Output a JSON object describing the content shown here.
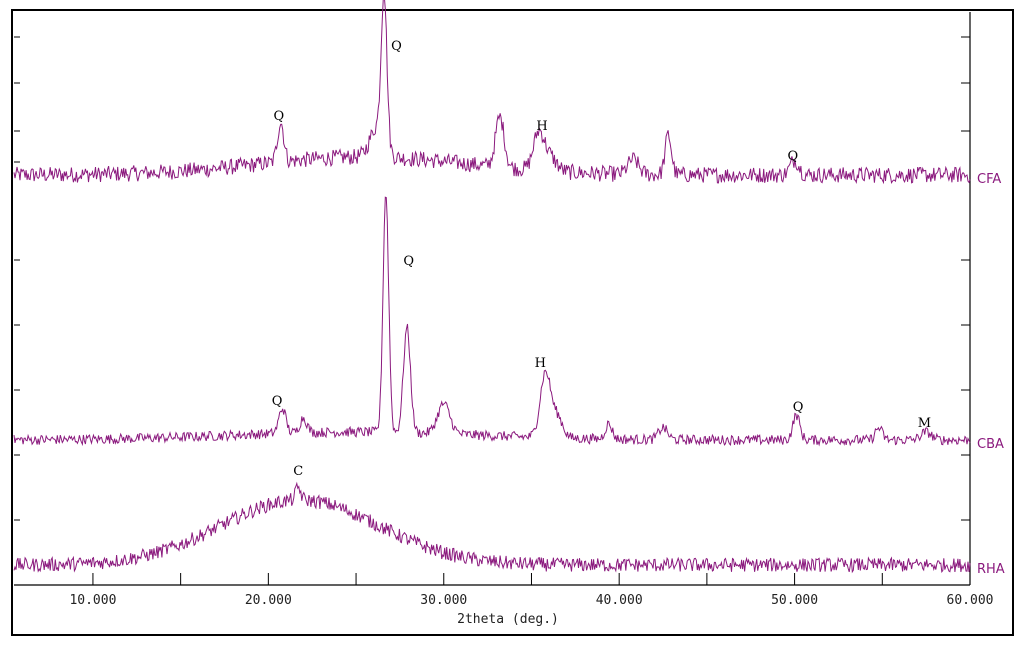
{
  "chart_data": {
    "type": "line",
    "xlabel": "2theta (deg.)",
    "x_ticks": [
      "10.000",
      "20.000",
      "30.000",
      "40.000",
      "50.000",
      "60.000"
    ],
    "xlim": [
      5.5,
      60
    ],
    "line_color": "#8B1A7E",
    "series": [
      {
        "name": "CFA",
        "baseline": 175,
        "peaks": [
          {
            "x": 20.7,
            "h": 40,
            "w": 0.18
          },
          {
            "x": 26.6,
            "h": 150,
            "w": 0.16
          },
          {
            "x": 26.2,
            "h": 30,
            "w": 0.4
          },
          {
            "x": 33.2,
            "h": 50,
            "w": 0.25
          },
          {
            "x": 35.4,
            "h": 35,
            "w": 0.3
          },
          {
            "x": 36.0,
            "h": 15,
            "w": 0.4
          },
          {
            "x": 40.8,
            "h": 15,
            "w": 0.3
          },
          {
            "x": 42.8,
            "h": 40,
            "w": 0.18
          },
          {
            "x": 50.0,
            "h": 15,
            "w": 0.25
          }
        ],
        "hump": {
          "center": 25.5,
          "height": 18,
          "sigma": 6
        },
        "noise": 8
      },
      {
        "name": "CBA",
        "baseline": 440,
        "peaks": [
          {
            "x": 20.8,
            "h": 25,
            "w": 0.2
          },
          {
            "x": 22.0,
            "h": 15,
            "w": 0.2
          },
          {
            "x": 26.7,
            "h": 240,
            "w": 0.16
          },
          {
            "x": 27.9,
            "h": 105,
            "w": 0.2
          },
          {
            "x": 30.0,
            "h": 30,
            "w": 0.35
          },
          {
            "x": 35.8,
            "h": 65,
            "w": 0.3
          },
          {
            "x": 36.5,
            "h": 20,
            "w": 0.3
          },
          {
            "x": 39.4,
            "h": 15,
            "w": 0.2
          },
          {
            "x": 42.5,
            "h": 12,
            "w": 0.25
          },
          {
            "x": 50.1,
            "h": 25,
            "w": 0.2
          },
          {
            "x": 54.8,
            "h": 12,
            "w": 0.2
          },
          {
            "x": 57.5,
            "h": 8,
            "w": 0.3
          }
        ],
        "hump": {
          "center": 25.0,
          "height": 8,
          "sigma": 7
        },
        "noise": 5
      },
      {
        "name": "RHA",
        "baseline": 565,
        "peaks": [
          {
            "x": 21.7,
            "h": 12,
            "w": 0.15
          }
        ],
        "hump": {
          "center": 21.8,
          "height": 65,
          "sigma": 4.5
        },
        "noise": 7
      }
    ],
    "annotations": [
      {
        "text": "Q",
        "x": 20.6,
        "series": "CFA",
        "dy": -55
      },
      {
        "text": "Q",
        "x": 27.3,
        "series": "CFA",
        "dy": -125
      },
      {
        "text": "H",
        "x": 35.6,
        "series": "CFA",
        "dy": -45
      },
      {
        "text": "Q",
        "x": 49.9,
        "series": "CFA",
        "dy": -15
      },
      {
        "text": "Q",
        "x": 28.0,
        "series": "CBA",
        "dy": -175
      },
      {
        "text": "H",
        "x": 35.5,
        "series": "CBA",
        "dy": -73
      },
      {
        "text": "Q",
        "x": 20.5,
        "series": "CBA",
        "dy": -35
      },
      {
        "text": "Q",
        "x": 50.2,
        "series": "CBA",
        "dy": -29
      },
      {
        "text": "M",
        "x": 57.4,
        "series": "CBA",
        "dy": -13
      },
      {
        "text": "C",
        "x": 21.7,
        "series": "RHA",
        "dy": -90
      }
    ]
  }
}
